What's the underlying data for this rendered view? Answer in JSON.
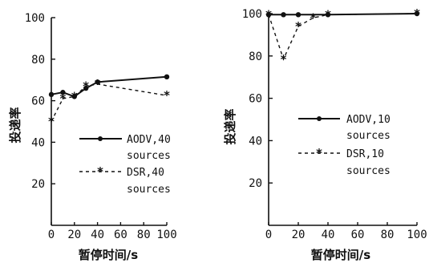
{
  "chart_data": [
    {
      "type": "line",
      "xlabel": "暂停时间/s",
      "ylabel": "投递率",
      "xlim": [
        0,
        100
      ],
      "ylim": [
        0,
        100
      ],
      "xticks": [
        "0",
        "20",
        "40",
        "60",
        "80",
        "100"
      ],
      "yticks": [
        "20",
        "40",
        "60",
        "80",
        "100"
      ],
      "legend_position": "lower-right",
      "series": [
        {
          "name": "AODV,40 sources",
          "style": "solid",
          "marker": "dot",
          "x": [
            0,
            10,
            20,
            30,
            40,
            100
          ],
          "values": [
            63,
            64,
            62,
            66,
            69,
            71.5
          ]
        },
        {
          "name": "DSR,40 sources",
          "style": "dashed",
          "marker": "star",
          "x": [
            0,
            10,
            20,
            30,
            40,
            100
          ],
          "values": [
            50,
            61,
            62,
            67,
            68,
            62.5
          ]
        }
      ]
    },
    {
      "type": "line",
      "xlabel": "暂停时间/s",
      "ylabel": "投递率",
      "xlim": [
        0,
        100
      ],
      "ylim": [
        0,
        100
      ],
      "xticks": [
        "0",
        "20",
        "40",
        "60",
        "80",
        "100"
      ],
      "yticks": [
        "20",
        "40",
        "60",
        "80",
        "100"
      ],
      "legend_position": "center-right",
      "series": [
        {
          "name": "AODV,10 sources",
          "style": "solid",
          "marker": "dot",
          "x": [
            0,
            10,
            20,
            40,
            100
          ],
          "values": [
            99.5,
            99.5,
            99.5,
            99.5,
            100
          ]
        },
        {
          "name": "DSR,10 sources",
          "style": "dashed",
          "marker": "star",
          "x": [
            0,
            10,
            20,
            30,
            40,
            100
          ],
          "values": [
            99.5,
            78.5,
            94,
            98,
            99.5,
            100
          ]
        }
      ]
    }
  ]
}
